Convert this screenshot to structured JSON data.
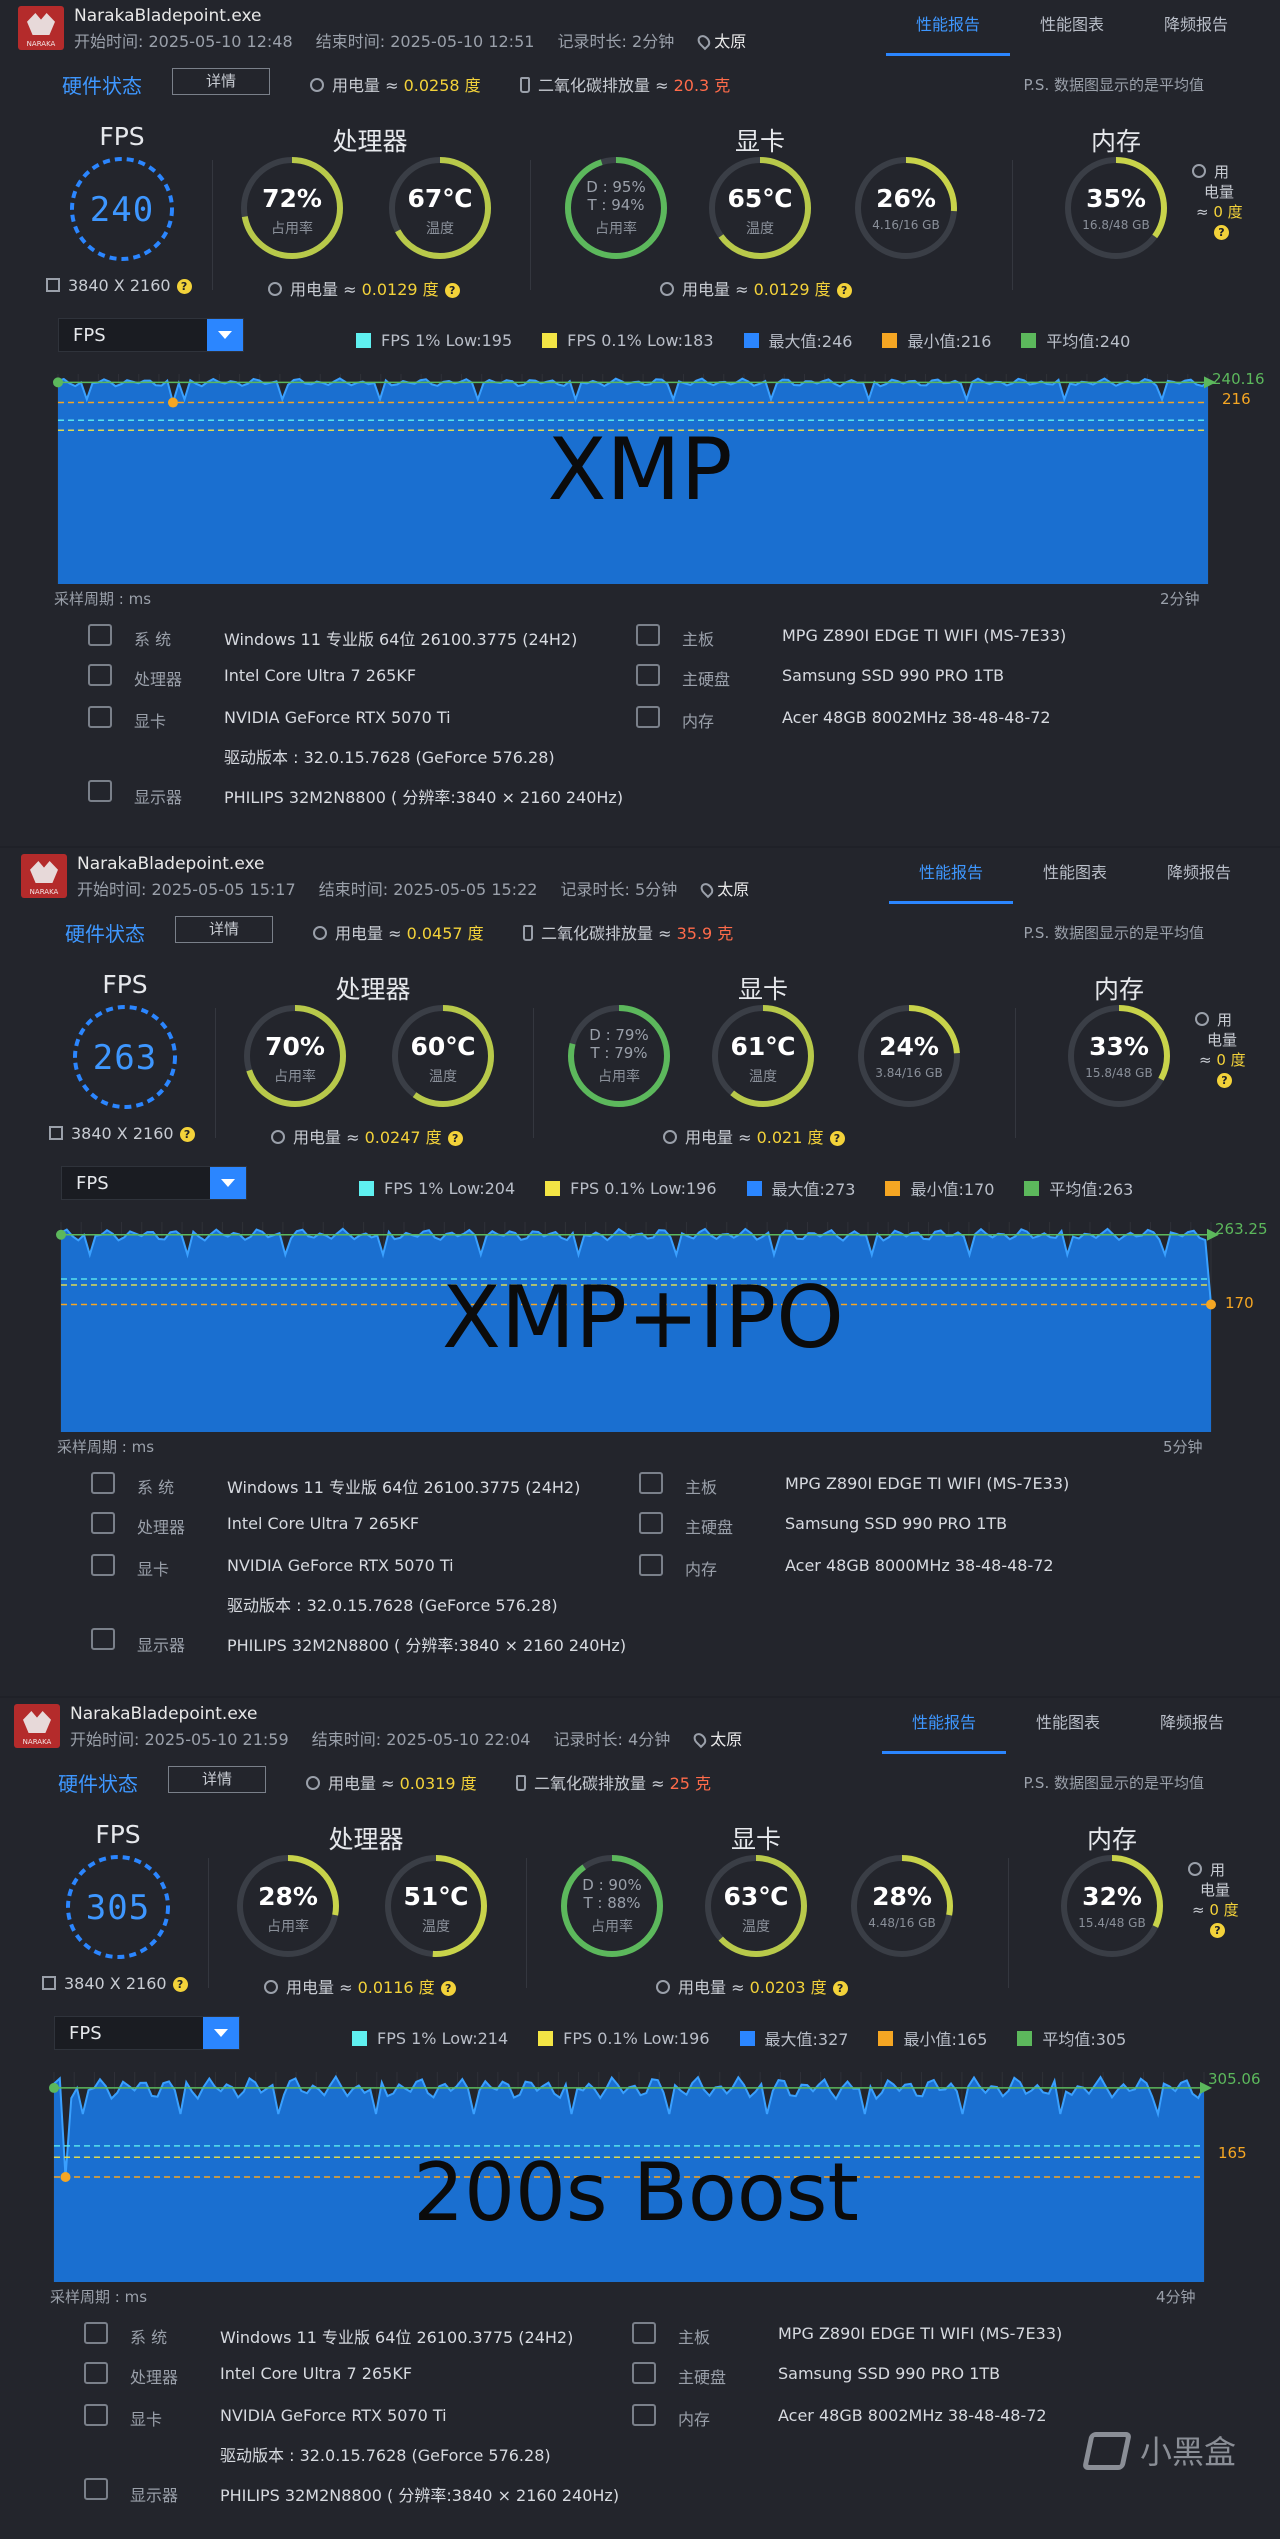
{
  "panels": [
    {
      "app": "NarakaBladepoint.exe",
      "logo_text": "NARAKA",
      "start": "开始时间: 2025-05-10 12:48",
      "end": "结束时间: 2025-05-10 12:51",
      "duration": "记录时长: 2分钟",
      "location": "太原",
      "tabs": [
        "性能报告",
        "性能图表",
        "降频报告"
      ],
      "hw_title": "硬件状态",
      "detail_btn": "详情",
      "power_label": "用电量 ≈ ",
      "power_value": "0.0258 度",
      "co2_label": "二氧化碳排放量 ≈ ",
      "co2_value": "20.3 克",
      "note": "P.S. 数据图显示的是平均值",
      "fps_title": "FPS",
      "fps_value": "240",
      "resolution": "3840 X 2160",
      "cpu_title": "处理器",
      "cpu_usage": "72%",
      "cpu_usage_frac": 0.72,
      "cpu_usage_label": "占用率",
      "cpu_temp": "67℃",
      "cpu_temp_frac": 0.67,
      "cpu_temp_label": "温度",
      "cpu_power_label": "用电量 ≈ ",
      "cpu_power": "0.0129 度",
      "gpu_title": "显卡",
      "gpu_d": "D : 95%",
      "gpu_t": "T : 94%",
      "gpu_usage_frac": 0.95,
      "gpu_usage_label": "占用率",
      "gpu_temp": "65℃",
      "gpu_temp_frac": 0.65,
      "gpu_temp_label": "温度",
      "gpu_mem": "26%",
      "gpu_mem_frac": 0.26,
      "gpu_mem_detail": "4.16/16 GB",
      "gpu_power_label": "用电量 ≈ ",
      "gpu_power": "0.0129 度",
      "mem_title": "内存",
      "mem_usage": "35%",
      "mem_usage_frac": 0.35,
      "mem_detail": "16.8/48 GB",
      "mem_power_a": "用",
      "mem_power_b": "电量",
      "mem_power_c": "≈ ",
      "mem_power_value": "0 度",
      "select_value": "FPS",
      "legend": [
        {
          "label": "FPS 1% Low:195",
          "color": "#5ff0f0"
        },
        {
          "label": "FPS 0.1% Low:183",
          "color": "#f3e545"
        },
        {
          "label": "最大值:246",
          "color": "#2b86ff"
        },
        {
          "label": "最小值:216",
          "color": "#f5a623"
        },
        {
          "label": "平均值:240",
          "color": "#5cb85c"
        }
      ],
      "chart_right_top": "240.16",
      "chart_right_mid": "216",
      "period_label": "采样周期 : ms",
      "period_end": "2分钟",
      "overlay": "XMP",
      "sys_label": "系 统",
      "sys": "Windows 11 专业版 64位 26100.3775 (24H2)",
      "cpu_label": "处理器",
      "cpu": "Intel Core Ultra 7 265KF",
      "gpu_label": "显卡",
      "gpu": "NVIDIA GeForce RTX 5070 Ti",
      "driver": "驱动版本 : 32.0.15.7628 (GeForce 576.28)",
      "monitor_label": "显示器",
      "monitor": "PHILIPS 32M2N8800 ( 分辨率:3840 × 2160 240Hz)",
      "board_label": "主板",
      "board": "MPG Z890I EDGE TI WIFI (MS-7E33)",
      "disk_label": "主硬盘",
      "disk": "Samsung SSD 990 PRO 1TB",
      "ram_label": "内存",
      "ram": "Acer 48GB 8002MHz 38-48-48-72"
    },
    {
      "app": "NarakaBladepoint.exe",
      "logo_text": "NARAKA",
      "start": "开始时间: 2025-05-05 15:17",
      "end": "结束时间: 2025-05-05 15:22",
      "duration": "记录时长: 5分钟",
      "location": "太原",
      "tabs": [
        "性能报告",
        "性能图表",
        "降频报告"
      ],
      "hw_title": "硬件状态",
      "detail_btn": "详情",
      "power_label": "用电量 ≈ ",
      "power_value": "0.0457 度",
      "co2_label": "二氧化碳排放量 ≈ ",
      "co2_value": "35.9 克",
      "note": "P.S. 数据图显示的是平均值",
      "fps_title": "FPS",
      "fps_value": "263",
      "resolution": "3840 X 2160",
      "cpu_title": "处理器",
      "cpu_usage": "70%",
      "cpu_usage_frac": 0.7,
      "cpu_usage_label": "占用率",
      "cpu_temp": "60℃",
      "cpu_temp_frac": 0.6,
      "cpu_temp_label": "温度",
      "cpu_power_label": "用电量 ≈ ",
      "cpu_power": "0.0247 度",
      "gpu_title": "显卡",
      "gpu_d": "D : 79%",
      "gpu_t": "T : 79%",
      "gpu_usage_frac": 0.79,
      "gpu_usage_label": "占用率",
      "gpu_temp": "61℃",
      "gpu_temp_frac": 0.61,
      "gpu_temp_label": "温度",
      "gpu_mem": "24%",
      "gpu_mem_frac": 0.24,
      "gpu_mem_detail": "3.84/16 GB",
      "gpu_power_label": "用电量 ≈ ",
      "gpu_power": "0.021 度",
      "mem_title": "内存",
      "mem_usage": "33%",
      "mem_usage_frac": 0.33,
      "mem_detail": "15.8/48 GB",
      "mem_power_a": "用",
      "mem_power_b": "电量",
      "mem_power_c": "≈ ",
      "mem_power_value": "0 度",
      "select_value": "FPS",
      "legend": [
        {
          "label": "FPS 1% Low:204",
          "color": "#5ff0f0"
        },
        {
          "label": "FPS 0.1% Low:196",
          "color": "#f3e545"
        },
        {
          "label": "最大值:273",
          "color": "#2b86ff"
        },
        {
          "label": "最小值:170",
          "color": "#f5a623"
        },
        {
          "label": "平均值:263",
          "color": "#5cb85c"
        }
      ],
      "chart_right_top": "263.25",
      "chart_right_mid": "170",
      "period_label": "采样周期 : ms",
      "period_end": "5分钟",
      "overlay": "XMP+IPO",
      "sys_label": "系 统",
      "sys": "Windows 11 专业版 64位 26100.3775 (24H2)",
      "cpu_label": "处理器",
      "cpu": "Intel Core Ultra 7 265KF",
      "gpu_label": "显卡",
      "gpu": "NVIDIA GeForce RTX 5070 Ti",
      "driver": "驱动版本 : 32.0.15.7628 (GeForce 576.28)",
      "monitor_label": "显示器",
      "monitor": "PHILIPS 32M2N8800 ( 分辨率:3840 × 2160 240Hz)",
      "board_label": "主板",
      "board": "MPG Z890I EDGE TI WIFI (MS-7E33)",
      "disk_label": "主硬盘",
      "disk": "Samsung SSD 990 PRO 1TB",
      "ram_label": "内存",
      "ram": "Acer 48GB 8000MHz 38-48-48-72"
    },
    {
      "app": "NarakaBladepoint.exe",
      "logo_text": "NARAKA",
      "start": "开始时间: 2025-05-10 21:59",
      "end": "结束时间: 2025-05-10 22:04",
      "duration": "记录时长: 4分钟",
      "location": "太原",
      "tabs": [
        "性能报告",
        "性能图表",
        "降频报告"
      ],
      "hw_title": "硬件状态",
      "detail_btn": "详情",
      "power_label": "用电量 ≈ ",
      "power_value": "0.0319 度",
      "co2_label": "二氧化碳排放量 ≈ ",
      "co2_value": "25 克",
      "note": "P.S. 数据图显示的是平均值",
      "fps_title": "FPS",
      "fps_value": "305",
      "resolution": "3840 X 2160",
      "cpu_title": "处理器",
      "cpu_usage": "28%",
      "cpu_usage_frac": 0.28,
      "cpu_usage_label": "占用率",
      "cpu_temp": "51℃",
      "cpu_temp_frac": 0.51,
      "cpu_temp_label": "温度",
      "cpu_power_label": "用电量 ≈ ",
      "cpu_power": "0.0116 度",
      "gpu_title": "显卡",
      "gpu_d": "D : 90%",
      "gpu_t": "T : 88%",
      "gpu_usage_frac": 0.9,
      "gpu_usage_label": "占用率",
      "gpu_temp": "63℃",
      "gpu_temp_frac": 0.63,
      "gpu_temp_label": "温度",
      "gpu_mem": "28%",
      "gpu_mem_frac": 0.28,
      "gpu_mem_detail": "4.48/16 GB",
      "gpu_power_label": "用电量 ≈ ",
      "gpu_power": "0.0203 度",
      "mem_title": "内存",
      "mem_usage": "32%",
      "mem_usage_frac": 0.32,
      "mem_detail": "15.4/48 GB",
      "mem_power_a": "用",
      "mem_power_b": "电量",
      "mem_power_c": "≈ ",
      "mem_power_value": "0 度",
      "select_value": "FPS",
      "legend": [
        {
          "label": "FPS 1% Low:214",
          "color": "#5ff0f0"
        },
        {
          "label": "FPS 0.1% Low:196",
          "color": "#f3e545"
        },
        {
          "label": "最大值:327",
          "color": "#2b86ff"
        },
        {
          "label": "最小值:165",
          "color": "#f5a623"
        },
        {
          "label": "平均值:305",
          "color": "#5cb85c"
        }
      ],
      "chart_right_top": "305.06",
      "chart_right_mid": "165",
      "period_label": "采样周期 : ms",
      "period_end": "4分钟",
      "overlay": "200s Boost",
      "sys_label": "系 统",
      "sys": "Windows 11 专业版 64位 26100.3775 (24H2)",
      "cpu_label": "处理器",
      "cpu": "Intel Core Ultra 7 265KF",
      "gpu_label": "显卡",
      "gpu": "NVIDIA GeForce RTX 5070 Ti",
      "driver": "驱动版本 : 32.0.15.7628 (GeForce 576.28)",
      "monitor_label": "显示器",
      "monitor": "PHILIPS 32M2N8800 ( 分辨率:3840 × 2160 240Hz)",
      "board_label": "主板",
      "board": "MPG Z890I EDGE TI WIFI (MS-7E33)",
      "disk_label": "主硬盘",
      "disk": "Samsung SSD 990 PRO 1TB",
      "ram_label": "内存",
      "ram": "Acer 48GB 8002MHz 38-48-48-72"
    }
  ],
  "chart_data": [
    {
      "type": "area",
      "series": [
        {
          "name": "FPS",
          "max": 246,
          "min": 216,
          "avg": 240,
          "low1": 195,
          "low01": 183
        }
      ],
      "ylim": [
        0,
        250
      ]
    },
    {
      "type": "area",
      "series": [
        {
          "name": "FPS",
          "max": 273,
          "min": 170,
          "avg": 263,
          "low1": 204,
          "low01": 196
        }
      ],
      "ylim": [
        0,
        280
      ]
    },
    {
      "type": "area",
      "series": [
        {
          "name": "FPS",
          "max": 327,
          "min": 165,
          "avg": 305,
          "low1": 214,
          "low01": 196
        }
      ],
      "ylim": [
        0,
        330
      ]
    }
  ],
  "watermark": "小黑盒",
  "colors": {
    "accent": "#2b86ff",
    "yellow": "#f3d23a",
    "red": "#ff6b4a",
    "green": "#5cb85c"
  }
}
